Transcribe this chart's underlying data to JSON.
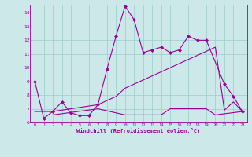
{
  "xlabel": "Windchill (Refroidissement éolien,°C)",
  "bg_color": "#cce8e8",
  "grid_color": "#99cccc",
  "line_color": "#990099",
  "x_min": 0,
  "x_max": 23,
  "y_min": 6,
  "y_max": 14.6,
  "yticks": [
    6,
    7,
    8,
    9,
    10,
    11,
    12,
    13,
    14
  ],
  "line1_x": [
    0,
    1,
    2,
    3,
    4,
    5,
    6,
    7,
    8,
    9,
    10,
    11,
    12,
    13,
    14,
    15,
    16,
    17,
    18,
    19,
    21,
    22,
    23
  ],
  "line1_y": [
    9.0,
    6.3,
    6.8,
    7.5,
    6.7,
    6.5,
    6.5,
    7.3,
    9.9,
    12.3,
    14.5,
    13.5,
    11.1,
    11.3,
    11.5,
    11.1,
    11.3,
    12.3,
    12.0,
    12.0,
    8.8,
    7.9,
    6.8
  ],
  "line2_x": [
    2,
    7,
    10,
    14,
    15,
    19,
    20,
    23
  ],
  "line2_y": [
    6.55,
    7.0,
    6.55,
    6.55,
    7.0,
    7.0,
    6.55,
    6.8
  ],
  "line3_x": [
    0,
    1,
    2,
    3,
    4,
    5,
    6,
    7,
    8,
    9,
    10,
    11,
    12,
    13,
    14,
    15,
    16,
    17,
    18,
    19,
    20,
    21,
    22,
    23
  ],
  "line3_y": [
    6.8,
    6.8,
    6.8,
    6.9,
    7.0,
    7.1,
    7.2,
    7.3,
    7.6,
    7.9,
    8.5,
    8.8,
    9.1,
    9.4,
    9.7,
    10.0,
    10.3,
    10.6,
    10.9,
    11.2,
    11.5,
    6.9,
    7.5,
    6.8
  ]
}
